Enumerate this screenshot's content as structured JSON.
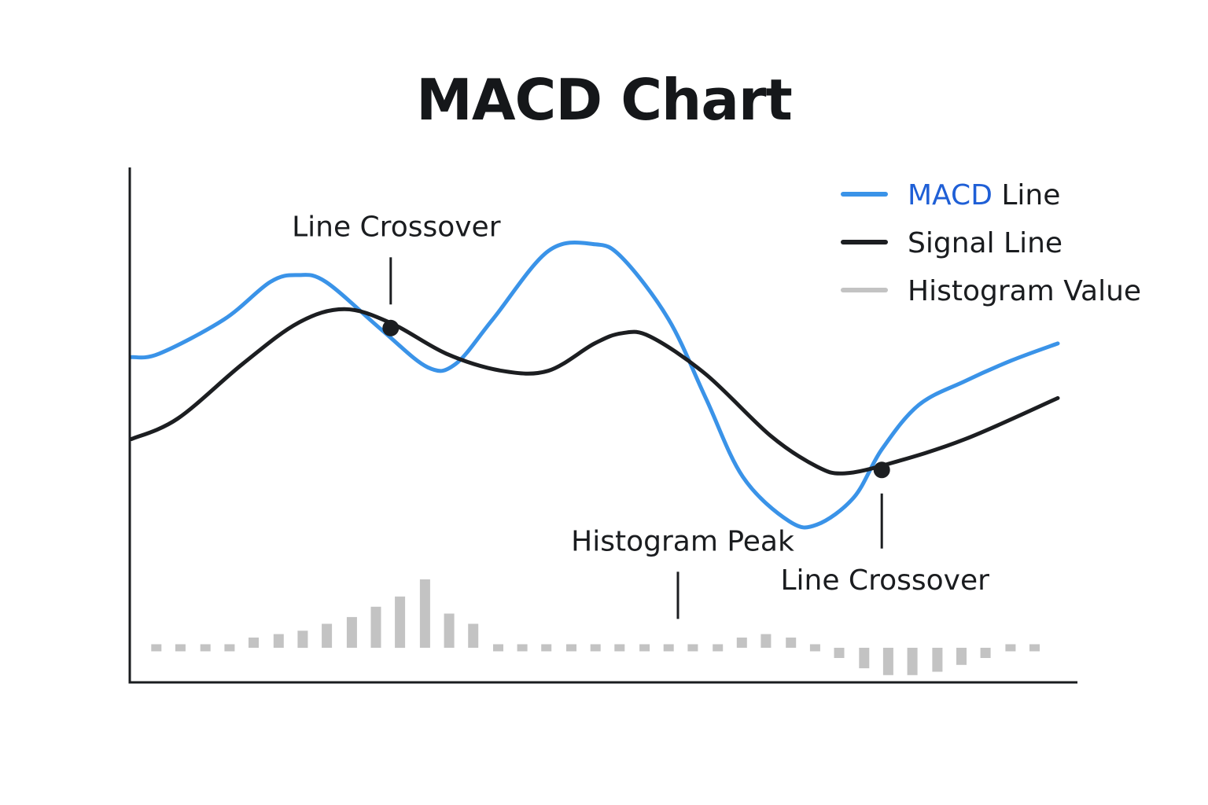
{
  "chart_data": {
    "type": "line",
    "title": "MACD Chart",
    "xlabel": "",
    "ylabel": "",
    "grid": false,
    "legend_position": "top-right",
    "xlim": [
      0,
      100
    ],
    "ylim": [
      -100,
      100
    ],
    "series": [
      {
        "name": "MACD Line",
        "name_parts": [
          "MACD",
          " Line"
        ],
        "kind": "line",
        "color": "#3a93e8",
        "points": [
          [
            0,
            45
          ],
          [
            3,
            46
          ],
          [
            10,
            56
          ],
          [
            15,
            67
          ],
          [
            18,
            69
          ],
          [
            21,
            67
          ],
          [
            27,
            53
          ],
          [
            32,
            42
          ],
          [
            35,
            43
          ],
          [
            39,
            56
          ],
          [
            45,
            76
          ],
          [
            50,
            78
          ],
          [
            53,
            74
          ],
          [
            58,
            56
          ],
          [
            62,
            33
          ],
          [
            66,
            10
          ],
          [
            71,
            -3
          ],
          [
            74,
            -4
          ],
          [
            78,
            4
          ],
          [
            81,
            18
          ],
          [
            85,
            31
          ],
          [
            90,
            38
          ],
          [
            95,
            44
          ],
          [
            100,
            49
          ]
        ]
      },
      {
        "name": "Signal Line",
        "kind": "line",
        "color": "#1c1e21",
        "points": [
          [
            0,
            21
          ],
          [
            5,
            27
          ],
          [
            12,
            43
          ],
          [
            18,
            55
          ],
          [
            23,
            59
          ],
          [
            28,
            55
          ],
          [
            34,
            46
          ],
          [
            40,
            41
          ],
          [
            45,
            41
          ],
          [
            50,
            49
          ],
          [
            53,
            52
          ],
          [
            56,
            51
          ],
          [
            62,
            40
          ],
          [
            69,
            22
          ],
          [
            74,
            13
          ],
          [
            77,
            11
          ],
          [
            82,
            14
          ],
          [
            90,
            21
          ],
          [
            100,
            33
          ]
        ]
      },
      {
        "name": "Histogram Value",
        "kind": "bar",
        "color": "#c3c3c3",
        "x": [
          2.7,
          5.3,
          8,
          10.6,
          13.2,
          15.9,
          18.5,
          21.1,
          23.8,
          26.4,
          29,
          31.7,
          34.3,
          36.9,
          39.6,
          42.2,
          44.8,
          47.5,
          50.1,
          52.7,
          55.4,
          58,
          60.6,
          63.3,
          65.9,
          68.5,
          71.2,
          73.8,
          76.4,
          79.1,
          81.7,
          84.3,
          87,
          89.6,
          92.2,
          94.9,
          97.5
        ],
        "values": [
          -40,
          -40,
          -39,
          -38,
          -37,
          -36,
          -35,
          -33,
          -31,
          -28,
          -25,
          -20,
          -30,
          -33,
          -38,
          -42,
          -42,
          -42,
          -42,
          -42,
          -42,
          -42,
          -38,
          -38,
          -37,
          -36,
          -37,
          -40,
          -43,
          -46,
          -48,
          -48,
          -47,
          -45,
          -43,
          -40,
          -40
        ]
      }
    ],
    "markers": [
      {
        "label": "Line Crossover",
        "x": 28,
        "y": 53.5
      },
      {
        "label": "Line Crossover",
        "x": 81,
        "y": 12
      }
    ],
    "annotations": [
      {
        "text": "Line Crossover",
        "target_x": 28,
        "target_y": 53.5,
        "placement": "above"
      },
      {
        "text": "Histogram Peak",
        "target_x": 59,
        "target_y": -38,
        "placement": "above"
      },
      {
        "text": "Line Crossover",
        "target_x": 81,
        "target_y": 12,
        "placement": "below"
      }
    ]
  }
}
